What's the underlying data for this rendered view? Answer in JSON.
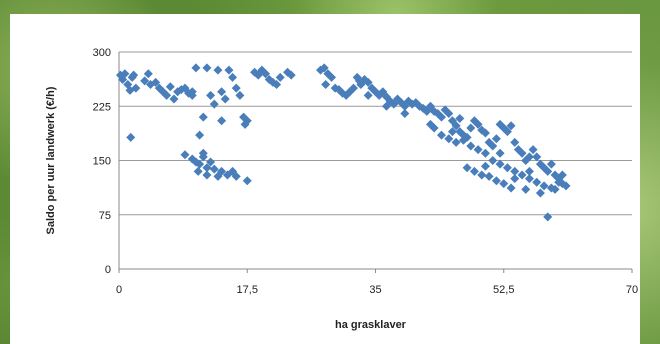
{
  "chart_data": {
    "type": "scatter",
    "xlabel": "ha grasklaver",
    "ylabel": "Saldo per uur landwerk (€/h)",
    "xlim": [
      0,
      70
    ],
    "ylim": [
      0,
      300
    ],
    "x_ticks": [
      0,
      17.5,
      35,
      52.5,
      70
    ],
    "x_tick_labels": [
      "0",
      "17,5",
      "35",
      "52,5",
      "70"
    ],
    "y_ticks": [
      0,
      75,
      150,
      225,
      300
    ],
    "y_tick_labels": [
      "0",
      "75",
      "150",
      "225",
      "300"
    ],
    "grid": true,
    "marker_color": "#4a7ebb",
    "points": [
      [
        0.2,
        268
      ],
      [
        0.5,
        262
      ],
      [
        0.8,
        270
      ],
      [
        1.2,
        255
      ],
      [
        1.5,
        247
      ],
      [
        1.8,
        265
      ],
      [
        2.0,
        268
      ],
      [
        2.3,
        250
      ],
      [
        1.6,
        182
      ],
      [
        3.5,
        260
      ],
      [
        4.0,
        270
      ],
      [
        4.3,
        255
      ],
      [
        5.0,
        258
      ],
      [
        5.5,
        250
      ],
      [
        6.0,
        245
      ],
      [
        6.5,
        240
      ],
      [
        7.0,
        252
      ],
      [
        7.5,
        235
      ],
      [
        8.0,
        245
      ],
      [
        8.5,
        248
      ],
      [
        9.0,
        250
      ],
      [
        9.5,
        243
      ],
      [
        10.0,
        245
      ],
      [
        10.5,
        278
      ],
      [
        10.0,
        240
      ],
      [
        11.0,
        185
      ],
      [
        11.5,
        210
      ],
      [
        12.0,
        278
      ],
      [
        12.5,
        240
      ],
      [
        13.0,
        228
      ],
      [
        13.5,
        275
      ],
      [
        14.0,
        245
      ],
      [
        14.5,
        235
      ],
      [
        15.0,
        275
      ],
      [
        15.5,
        265
      ],
      [
        16.0,
        250
      ],
      [
        16.5,
        240
      ],
      [
        17.0,
        210
      ],
      [
        17.2,
        200
      ],
      [
        17.5,
        205
      ],
      [
        14.0,
        205
      ],
      [
        9.0,
        158
      ],
      [
        10.0,
        152
      ],
      [
        10.5,
        148
      ],
      [
        11.0,
        145
      ],
      [
        11.5,
        155
      ],
      [
        12.0,
        140
      ],
      [
        12.5,
        148
      ],
      [
        10.8,
        135
      ],
      [
        12.0,
        130
      ],
      [
        13.0,
        138
      ],
      [
        13.5,
        128
      ],
      [
        14.0,
        135
      ],
      [
        14.8,
        130
      ],
      [
        15.5,
        135
      ],
      [
        16.0,
        128
      ],
      [
        17.5,
        122
      ],
      [
        11.5,
        160
      ],
      [
        18.5,
        272
      ],
      [
        19.0,
        268
      ],
      [
        19.5,
        275
      ],
      [
        20.0,
        270
      ],
      [
        20.5,
        262
      ],
      [
        21.0,
        258
      ],
      [
        21.5,
        255
      ],
      [
        22.0,
        265
      ],
      [
        23.0,
        272
      ],
      [
        23.5,
        268
      ],
      [
        27.5,
        275
      ],
      [
        28.0,
        278
      ],
      [
        28.5,
        270
      ],
      [
        29.0,
        265
      ],
      [
        28.2,
        255
      ],
      [
        29.5,
        250
      ],
      [
        30.0,
        248
      ],
      [
        30.5,
        243
      ],
      [
        31.0,
        240
      ],
      [
        31.5,
        245
      ],
      [
        32.0,
        250
      ],
      [
        32.5,
        265
      ],
      [
        32.8,
        260
      ],
      [
        33.0,
        255
      ],
      [
        33.5,
        262
      ],
      [
        34.0,
        258
      ],
      [
        34.5,
        250
      ],
      [
        35.0,
        245
      ],
      [
        35.5,
        240
      ],
      [
        36.0,
        245
      ],
      [
        36.5,
        238
      ],
      [
        37.0,
        232
      ],
      [
        37.5,
        228
      ],
      [
        38.0,
        235
      ],
      [
        38.5,
        230
      ],
      [
        39.0,
        225
      ],
      [
        39.5,
        232
      ],
      [
        40.0,
        228
      ],
      [
        40.5,
        230
      ],
      [
        41.0,
        225
      ],
      [
        41.5,
        222
      ],
      [
        42.0,
        218
      ],
      [
        42.5,
        225
      ],
      [
        43.0,
        218
      ],
      [
        43.5,
        215
      ],
      [
        44.0,
        210
      ],
      [
        44.5,
        220
      ],
      [
        45.0,
        215
      ],
      [
        45.5,
        205
      ],
      [
        46.0,
        198
      ],
      [
        46.5,
        190
      ],
      [
        47.0,
        185
      ],
      [
        47.5,
        182
      ],
      [
        48.0,
        195
      ],
      [
        48.5,
        205
      ],
      [
        49.0,
        200
      ],
      [
        49.5,
        192
      ],
      [
        50.0,
        188
      ],
      [
        50.5,
        175
      ],
      [
        51.0,
        170
      ],
      [
        51.5,
        180
      ],
      [
        52.0,
        200
      ],
      [
        52.5,
        195
      ],
      [
        53.0,
        190
      ],
      [
        53.5,
        198
      ],
      [
        54.0,
        175
      ],
      [
        54.5,
        165
      ],
      [
        55.0,
        160
      ],
      [
        55.5,
        150
      ],
      [
        56.0,
        155
      ],
      [
        56.5,
        165
      ],
      [
        57.0,
        155
      ],
      [
        57.5,
        145
      ],
      [
        58.0,
        140
      ],
      [
        58.5,
        135
      ],
      [
        59.0,
        145
      ],
      [
        59.5,
        130
      ],
      [
        60.0,
        125
      ],
      [
        60.5,
        118
      ],
      [
        61.0,
        115
      ],
      [
        45.0,
        180
      ],
      [
        46.0,
        175
      ],
      [
        47.0,
        178
      ],
      [
        48.0,
        170
      ],
      [
        49.0,
        165
      ],
      [
        50.0,
        160
      ],
      [
        51.0,
        150
      ],
      [
        52.0,
        145
      ],
      [
        53.0,
        140
      ],
      [
        54.0,
        135
      ],
      [
        55.0,
        130
      ],
      [
        56.0,
        125
      ],
      [
        57.0,
        120
      ],
      [
        58.0,
        115
      ],
      [
        59.0,
        112
      ],
      [
        60.0,
        120
      ],
      [
        47.5,
        140
      ],
      [
        48.5,
        135
      ],
      [
        49.5,
        130
      ],
      [
        50.5,
        128
      ],
      [
        51.5,
        122
      ],
      [
        52.5,
        118
      ],
      [
        53.5,
        112
      ],
      [
        55.5,
        110
      ],
      [
        57.5,
        105
      ],
      [
        59.5,
        110
      ],
      [
        58.5,
        72
      ],
      [
        54.0,
        125
      ],
      [
        56.0,
        135
      ],
      [
        52.0,
        160
      ],
      [
        50.0,
        142
      ],
      [
        60.5,
        130
      ],
      [
        43.0,
        195
      ],
      [
        44.0,
        185
      ],
      [
        45.5,
        190
      ],
      [
        42.5,
        200
      ],
      [
        46.5,
        208
      ],
      [
        39.0,
        215
      ],
      [
        36.5,
        225
      ],
      [
        34.0,
        240
      ]
    ]
  }
}
